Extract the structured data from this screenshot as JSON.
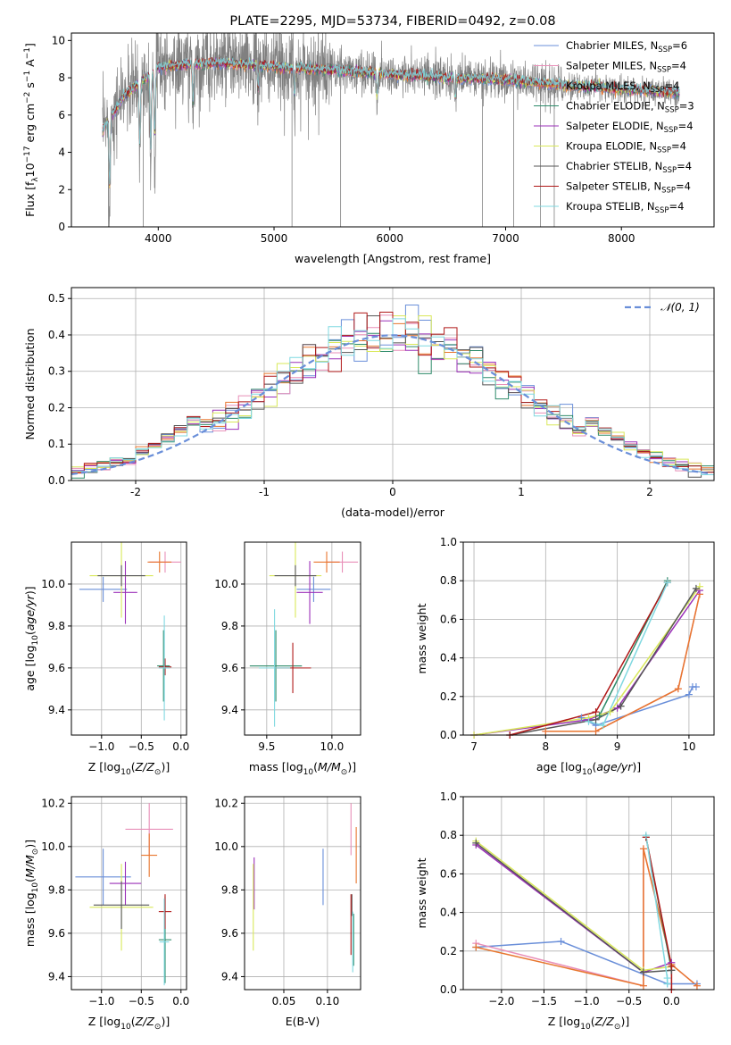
{
  "title": "PLATE=2295, MJD=53734, FIBERID=0492, z=0.08",
  "models": [
    {
      "label": "Chabrier MILES, N",
      "sub": "SSP",
      "tail": "=6",
      "color": "#6a8fd9"
    },
    {
      "label": "Salpeter MILES, N",
      "sub": "SSP",
      "tail": "=4",
      "color": "#e88fb8"
    },
    {
      "label": "Kroupa MILES, N",
      "sub": "SSP",
      "tail": "=4",
      "color": "#e8762e"
    },
    {
      "label": "Chabrier ELODIE, N",
      "sub": "SSP",
      "tail": "=3",
      "color": "#2e8b6a"
    },
    {
      "label": "Salpeter ELODIE, N",
      "sub": "SSP",
      "tail": "=4",
      "color": "#9b30b8"
    },
    {
      "label": "Kroupa ELODIE, N",
      "sub": "SSP",
      "tail": "=4",
      "color": "#d9e85a"
    },
    {
      "label": "Chabrier STELIB, N",
      "sub": "SSP",
      "tail": "=4",
      "color": "#555555"
    },
    {
      "label": "Salpeter STELIB, N",
      "sub": "SSP",
      "tail": "=4",
      "color": "#b01818"
    },
    {
      "label": "Kroupa STELIB, N",
      "sub": "SSP",
      "tail": "=4",
      "color": "#7fd8e0"
    }
  ],
  "chart_data": [
    {
      "id": "spectrum",
      "type": "line",
      "xlabel": "wavelength [Angstrom, rest frame]",
      "ylabel_parts": [
        "Flux [f",
        "λ",
        "10",
        "−17",
        " erg cm",
        "−2",
        " s",
        "−1",
        " A",
        "−1",
        "]"
      ],
      "xlim": [
        3250,
        8800
      ],
      "ylim": [
        0,
        10.4
      ],
      "xticks": [
        4000,
        5000,
        6000,
        7000,
        8000
      ],
      "yticks": [
        0,
        2,
        4,
        6,
        8,
        10
      ],
      "data_color": "#808080",
      "x_range": [
        3520,
        8500
      ],
      "continuum": [
        [
          3520,
          5.2
        ],
        [
          3700,
          7.0
        ],
        [
          4000,
          8.6
        ],
        [
          4500,
          8.8
        ],
        [
          5000,
          8.6
        ],
        [
          5500,
          8.4
        ],
        [
          6000,
          8.2
        ],
        [
          6500,
          8.0
        ],
        [
          7000,
          7.9
        ],
        [
          7500,
          7.6
        ],
        [
          8000,
          7.4
        ],
        [
          8500,
          7.2
        ]
      ],
      "absorption_dips": [
        {
          "x": 3580,
          "depth": 4.5
        },
        {
          "x": 3840,
          "depth": 4.0
        },
        {
          "x": 3935,
          "depth": 5.0
        },
        {
          "x": 3970,
          "depth": 4.5
        },
        {
          "x": 4300,
          "depth": 2.5
        },
        {
          "x": 4862,
          "depth": 1.5
        },
        {
          "x": 5175,
          "depth": 1.8
        },
        {
          "x": 5890,
          "depth": 1.5
        },
        {
          "x": 6563,
          "depth": 1.2
        }
      ],
      "masked_lines": [
        3570,
        3870,
        5155,
        5575,
        6800,
        7070,
        7300,
        7420
      ]
    },
    {
      "id": "residuals",
      "type": "histogram",
      "xlabel": "(data-model)/error",
      "ylabel": "Normed distribution",
      "xlim": [
        -2.5,
        2.5
      ],
      "ylim": [
        0,
        0.53
      ],
      "xticks": [
        -2,
        -1,
        0,
        1,
        2
      ],
      "yticks": [
        0,
        0.1,
        0.2,
        0.3,
        0.4,
        0.5
      ],
      "bin_width": 0.1,
      "normal_curve": {
        "mean": 0,
        "sigma": 1,
        "color": "#6a8fd9",
        "label": "𝒩(0, 1)"
      }
    },
    {
      "id": "age-vs-Z",
      "type": "scatter",
      "xlabel": "Z [log",
      "xlabel_full": "Z [log₁₀(Z/Z☉)]",
      "ylabel_full": "age  [log₁₀(age/yr)]",
      "xlim": [
        -1.38,
        0.07
      ],
      "ylim": [
        9.28,
        10.2
      ],
      "xticks": [
        -1.0,
        -0.5,
        0.0
      ],
      "xtick_labels": [
        "−1.0",
        "−0.5",
        "0.0"
      ],
      "yticks": [
        9.4,
        9.6,
        9.8,
        10.0
      ],
      "yticks_labels": [
        "9.4",
        "9.6",
        "9.8",
        "10.0"
      ],
      "points": [
        {
          "m": 0,
          "x": -0.98,
          "y": 9.975,
          "ex": 0.3,
          "ey": 0.06
        },
        {
          "m": 1,
          "x": -0.2,
          "y": 10.105,
          "ex": 0.2,
          "ey": 0.05
        },
        {
          "m": 2,
          "x": -0.27,
          "y": 10.105,
          "ex": 0.15,
          "ey": 0.05
        },
        {
          "m": 3,
          "x": -0.22,
          "y": 9.61,
          "ex": 0.08,
          "ey": 0.17
        },
        {
          "m": 4,
          "x": -0.7,
          "y": 9.96,
          "ex": 0.15,
          "ey": 0.15
        },
        {
          "m": 5,
          "x": -0.75,
          "y": 10.04,
          "ex": 0.4,
          "ey": 0.2
        },
        {
          "m": 6,
          "x": -0.75,
          "y": 10.04,
          "ex": 0.3,
          "ey": 0.05
        },
        {
          "m": 7,
          "x": -0.2,
          "y": 9.605,
          "ex": 0.08,
          "ey": 0.04
        },
        {
          "m": 8,
          "x": -0.21,
          "y": 9.6,
          "ex": 0.07,
          "ey": 0.25
        }
      ]
    },
    {
      "id": "age-vs-mass",
      "type": "scatter",
      "xlabel_full": "mass [log₁₀(M/M☉)]",
      "xlim": [
        9.33,
        10.22
      ],
      "ylim": [
        9.28,
        10.2
      ],
      "xticks": [
        9.5,
        10.0
      ],
      "xtick_labels": [
        "9.5",
        "10.0"
      ],
      "yticks": [
        9.4,
        9.6,
        9.8,
        10.0
      ],
      "yticks_labels": [
        "9.4",
        "9.6",
        "9.8",
        "10.0"
      ],
      "points": [
        {
          "m": 0,
          "x": 9.86,
          "y": 9.975,
          "ex": 0.13,
          "ey": 0.06
        },
        {
          "m": 1,
          "x": 10.08,
          "y": 10.105,
          "ex": 0.12,
          "ey": 0.05
        },
        {
          "m": 2,
          "x": 9.96,
          "y": 10.105,
          "ex": 0.1,
          "ey": 0.05
        },
        {
          "m": 3,
          "x": 9.57,
          "y": 9.61,
          "ex": 0.2,
          "ey": 0.17
        },
        {
          "m": 4,
          "x": 9.83,
          "y": 9.96,
          "ex": 0.1,
          "ey": 0.15
        },
        {
          "m": 5,
          "x": 9.72,
          "y": 10.04,
          "ex": 0.2,
          "ey": 0.2
        },
        {
          "m": 6,
          "x": 9.72,
          "y": 10.04,
          "ex": 0.16,
          "ey": 0.05
        },
        {
          "m": 7,
          "x": 9.7,
          "y": 9.6,
          "ex": 0.14,
          "ey": 0.12
        },
        {
          "m": 8,
          "x": 9.56,
          "y": 9.6,
          "ex": 0.12,
          "ey": 0.28
        }
      ]
    },
    {
      "id": "weight-vs-age",
      "type": "line",
      "xlabel_full": "age  [log₁₀(age/yr)]",
      "ylabel": "mass weight",
      "xlim": [
        6.85,
        10.35
      ],
      "ylim": [
        0,
        1.0
      ],
      "xticks": [
        7,
        8,
        9,
        10
      ],
      "yticks": [
        0.0,
        0.2,
        0.4,
        0.6,
        0.8,
        1.0
      ],
      "series": [
        {
          "m": 0,
          "points": [
            [
              8.5,
              0.09
            ],
            [
              8.7,
              0.05
            ],
            [
              10.0,
              0.21
            ],
            [
              10.05,
              0.25
            ],
            [
              10.1,
              0.25
            ]
          ]
        },
        {
          "m": 1,
          "points": [
            [
              8.0,
              0.02
            ],
            [
              8.7,
              0.02
            ],
            [
              9.85,
              0.24
            ],
            [
              10.15,
              0.73
            ]
          ]
        },
        {
          "m": 2,
          "points": [
            [
              8.0,
              0.02
            ],
            [
              8.7,
              0.02
            ],
            [
              9.85,
              0.24
            ],
            [
              10.15,
              0.73
            ]
          ]
        },
        {
          "m": 3,
          "points": [
            [
              8.75,
              0.1
            ],
            [
              9.7,
              0.8
            ]
          ]
        },
        {
          "m": 4,
          "points": [
            [
              7.0,
              0.0
            ],
            [
              8.6,
              0.08
            ],
            [
              9.0,
              0.14
            ],
            [
              10.15,
              0.75
            ]
          ]
        },
        {
          "m": 5,
          "points": [
            [
              7.0,
              0.0
            ],
            [
              8.6,
              0.09
            ],
            [
              8.9,
              0.12
            ],
            [
              10.15,
              0.77
            ]
          ]
        },
        {
          "m": 6,
          "points": [
            [
              7.5,
              0.0
            ],
            [
              8.7,
              0.08
            ],
            [
              9.05,
              0.15
            ],
            [
              10.1,
              0.76
            ]
          ]
        },
        {
          "m": 7,
          "points": [
            [
              7.5,
              0.0
            ],
            [
              8.7,
              0.12
            ],
            [
              9.7,
              0.79
            ]
          ]
        },
        {
          "m": 8,
          "points": [
            [
              8.6,
              0.07
            ],
            [
              8.8,
              0.05
            ],
            [
              9.7,
              0.79
            ]
          ]
        }
      ]
    },
    {
      "id": "mass-vs-Z",
      "type": "scatter",
      "xlabel_full": "Z [log₁₀(Z/Z☉)]",
      "ylabel_full": "mass [log₁₀(M/M☉)]",
      "xlim": [
        -1.38,
        0.07
      ],
      "ylim": [
        9.34,
        10.23
      ],
      "xticks": [
        -1.0,
        -0.5,
        0.0
      ],
      "xtick_labels": [
        "−1.0",
        "−0.5",
        "0.0"
      ],
      "yticks": [
        9.4,
        9.6,
        9.8,
        10.0,
        10.2
      ],
      "yticks_labels": [
        "9.4",
        "9.6",
        "9.8",
        "10.0",
        "10.2"
      ],
      "points": [
        {
          "m": 0,
          "x": -0.98,
          "y": 9.86,
          "ex": 0.35,
          "ey": 0.13
        },
        {
          "m": 1,
          "x": -0.4,
          "y": 10.08,
          "ex": 0.3,
          "ey": 0.12
        },
        {
          "m": 2,
          "x": -0.4,
          "y": 9.96,
          "ex": 0.1,
          "ey": 0.1
        },
        {
          "m": 3,
          "x": -0.2,
          "y": 9.57,
          "ex": 0.08,
          "ey": 0.2
        },
        {
          "m": 4,
          "x": -0.7,
          "y": 9.83,
          "ex": 0.2,
          "ey": 0.1
        },
        {
          "m": 5,
          "x": -0.75,
          "y": 9.72,
          "ex": 0.4,
          "ey": 0.2
        },
        {
          "m": 6,
          "x": -0.75,
          "y": 9.73,
          "ex": 0.35,
          "ey": 0.11
        },
        {
          "m": 7,
          "x": -0.2,
          "y": 9.7,
          "ex": 0.08,
          "ey": 0.08
        },
        {
          "m": 8,
          "x": -0.21,
          "y": 9.56,
          "ex": 0.06,
          "ey": 0.2
        }
      ]
    },
    {
      "id": "mass-vs-EBV",
      "type": "scatter",
      "xlabel": "E(B-V)",
      "xlim": [
        0.005,
        0.138
      ],
      "ylim": [
        9.34,
        10.23
      ],
      "xticks": [
        0.05,
        0.1
      ],
      "xtick_labels": [
        "0.05",
        "0.10"
      ],
      "yticks": [
        9.4,
        9.6,
        9.8,
        10.0,
        10.2
      ],
      "yticks_labels": [
        "9.4",
        "9.6",
        "9.8",
        "10.0",
        "10.2"
      ],
      "points": [
        {
          "m": 0,
          "x": 0.095,
          "y": 9.86,
          "ex": 0.0,
          "ey": 0.13
        },
        {
          "m": 1,
          "x": 0.127,
          "y": 10.08,
          "ex": 0.0,
          "ey": 0.12
        },
        {
          "m": 2,
          "x": 0.133,
          "y": 9.96,
          "ex": 0.0,
          "ey": 0.13
        },
        {
          "m": 3,
          "x": 0.13,
          "y": 9.57,
          "ex": 0.0,
          "ey": 0.12
        },
        {
          "m": 4,
          "x": 0.016,
          "y": 9.83,
          "ex": 0.0,
          "ey": 0.12
        },
        {
          "m": 5,
          "x": 0.015,
          "y": 9.72,
          "ex": 0.0,
          "ey": 0.2
        },
        {
          "m": 6,
          "x": 0.128,
          "y": 9.73,
          "ex": 0.0,
          "ey": 0.05
        },
        {
          "m": 7,
          "x": 0.127,
          "y": 9.64,
          "ex": 0.0,
          "ey": 0.14
        },
        {
          "m": 8,
          "x": 0.129,
          "y": 9.56,
          "ex": 0.0,
          "ey": 0.14
        }
      ]
    },
    {
      "id": "weight-vs-Z",
      "type": "line",
      "xlabel_full": "Z [log₁₀(Z/Z☉)]",
      "ylabel": "mass weight",
      "xlim": [
        -2.45,
        0.5
      ],
      "ylim": [
        0,
        1.0
      ],
      "xticks": [
        -2.0,
        -1.5,
        -1.0,
        -0.5,
        0.0
      ],
      "xtick_labels": [
        "−2.0",
        "−1.5",
        "−1.0",
        "−0.5",
        "0.0"
      ],
      "yticks": [
        0.0,
        0.2,
        0.4,
        0.6,
        0.8,
        1.0
      ],
      "series": [
        {
          "m": 0,
          "points": [
            [
              -2.3,
              0.22
            ],
            [
              -1.3,
              0.25
            ],
            [
              -0.05,
              0.03
            ],
            [
              0.3,
              0.03
            ]
          ]
        },
        {
          "m": 1,
          "points": [
            [
              -2.3,
              0.24
            ],
            [
              -0.33,
              0.02
            ],
            [
              -0.33,
              0.73
            ],
            [
              0.0,
              0.13
            ],
            [
              0.3,
              0.02
            ]
          ]
        },
        {
          "m": 2,
          "points": [
            [
              -2.3,
              0.22
            ],
            [
              -0.33,
              0.02
            ],
            [
              -0.33,
              0.73
            ],
            [
              0.0,
              0.13
            ],
            [
              0.3,
              0.02
            ]
          ]
        },
        {
          "m": 3,
          "points": [
            [
              -0.3,
              0.79
            ],
            [
              0.0,
              0.1
            ]
          ]
        },
        {
          "m": 4,
          "points": [
            [
              -2.3,
              0.75
            ],
            [
              -0.33,
              0.09
            ],
            [
              0.0,
              0.14
            ]
          ]
        },
        {
          "m": 5,
          "points": [
            [
              -2.3,
              0.77
            ],
            [
              -0.33,
              0.1
            ],
            [
              0.0,
              0.12
            ]
          ]
        },
        {
          "m": 6,
          "points": [
            [
              -2.3,
              0.76
            ],
            [
              -0.33,
              0.09
            ],
            [
              0.0,
              0.1
            ]
          ]
        },
        {
          "m": 7,
          "points": [
            [
              -0.3,
              0.79
            ],
            [
              0.0,
              0.12
            ],
            [
              0.0,
              0.0
            ]
          ]
        },
        {
          "m": 8,
          "points": [
            [
              -0.3,
              0.8
            ],
            [
              -0.05,
              0.06
            ],
            [
              -0.05,
              0.03
            ]
          ]
        }
      ]
    }
  ]
}
